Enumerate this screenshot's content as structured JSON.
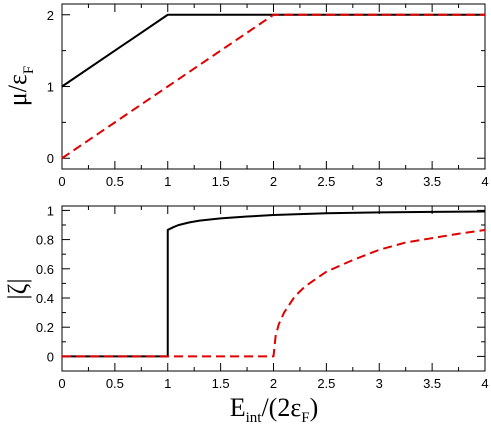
{
  "chart_data": [
    {
      "type": "line",
      "ylabel": {
        "main": "μ/ε",
        "sub": "F"
      },
      "xlim": [
        0,
        4
      ],
      "ylim": [
        -0.15,
        2.15
      ],
      "xticks": [
        "0",
        "0.5",
        "1",
        "1.5",
        "2",
        "2.5",
        "3",
        "3.5",
        "4"
      ],
      "yticks": [
        "0",
        "1",
        "2"
      ],
      "grid": false,
      "series": [
        {
          "color": "#000000",
          "dash": "solid",
          "x": [
            0,
            1,
            4
          ],
          "y": [
            1,
            2,
            2
          ]
        },
        {
          "color": "#e00000",
          "dash": "dashed",
          "x": [
            0,
            2,
            4
          ],
          "y": [
            0,
            2,
            2
          ]
        }
      ]
    },
    {
      "type": "line",
      "xlabel": {
        "main": "E",
        "sub": "int",
        "tail": "/(2ε",
        "sub2": "F",
        "end": ")"
      },
      "ylabel": {
        "main": "|ζ|"
      },
      "xlim": [
        0,
        4
      ],
      "ylim": [
        -0.1,
        1.03
      ],
      "xticks": [
        "0",
        "0.5",
        "1",
        "1.5",
        "2",
        "2.5",
        "3",
        "3.5",
        "4"
      ],
      "yticks": [
        "0",
        "0.2",
        "0.4",
        "0.6",
        "0.8",
        "1"
      ],
      "grid": false,
      "series": [
        {
          "color": "#000000",
          "dash": "solid",
          "x": [
            0,
            1,
            1,
            1.05,
            1.1,
            1.2,
            1.3,
            1.5,
            1.75,
            2,
            2.5,
            3,
            3.5,
            4
          ],
          "y": [
            0,
            0,
            0.866,
            0.884,
            0.899,
            0.917,
            0.93,
            0.945,
            0.958,
            0.968,
            0.98,
            0.986,
            0.99,
            0.992
          ]
        },
        {
          "color": "#e00000",
          "dash": "dashed",
          "x": [
            0,
            2,
            2.02,
            2.05,
            2.1,
            2.2,
            2.3,
            2.5,
            2.75,
            3,
            3.25,
            3.5,
            3.75,
            4
          ],
          "y": [
            0,
            0,
            0.14,
            0.22,
            0.3,
            0.41,
            0.48,
            0.58,
            0.66,
            0.73,
            0.78,
            0.81,
            0.84,
            0.866
          ]
        }
      ]
    }
  ]
}
